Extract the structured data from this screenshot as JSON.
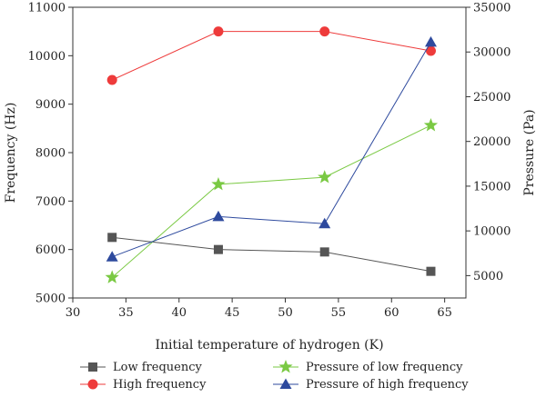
{
  "chart_data": {
    "type": "line",
    "xlabel": "Initial temperature of hydrogen (K)",
    "ylabel_left": "Frequency (Hz)",
    "ylabel_right": "Pressure (Pa)",
    "xlim": [
      30,
      67
    ],
    "ylim_left": [
      5000,
      11000
    ],
    "ylim_right": [
      2500,
      35000
    ],
    "x_ticks": [
      30,
      35,
      40,
      45,
      50,
      55,
      60,
      65
    ],
    "y_left_ticks": [
      5000,
      6000,
      7000,
      8000,
      9000,
      10000,
      11000
    ],
    "y_right_ticks": [
      5000,
      10000,
      15000,
      20000,
      25000,
      30000,
      35000
    ],
    "x": [
      33.7,
      43.7,
      53.7,
      63.7
    ],
    "series": [
      {
        "name": "Low frequency",
        "axis": "left",
        "marker": "square",
        "color": "#555555",
        "values": [
          6250,
          6000,
          5950,
          5550
        ]
      },
      {
        "name": "High frequency",
        "axis": "left",
        "marker": "circle",
        "color": "#ee3b3b",
        "values": [
          9500,
          10500,
          10500,
          10100
        ]
      },
      {
        "name": "Pressure of low frequency",
        "axis": "right",
        "marker": "star",
        "color": "#7ac943",
        "values": [
          4800,
          15200,
          16000,
          21800
        ]
      },
      {
        "name": "Pressure of high frequency",
        "axis": "right",
        "marker": "triangle",
        "color": "#2e4a9e",
        "values": [
          7100,
          11600,
          10800,
          31100
        ]
      }
    ],
    "legend_position": "bottom",
    "grid": false
  }
}
